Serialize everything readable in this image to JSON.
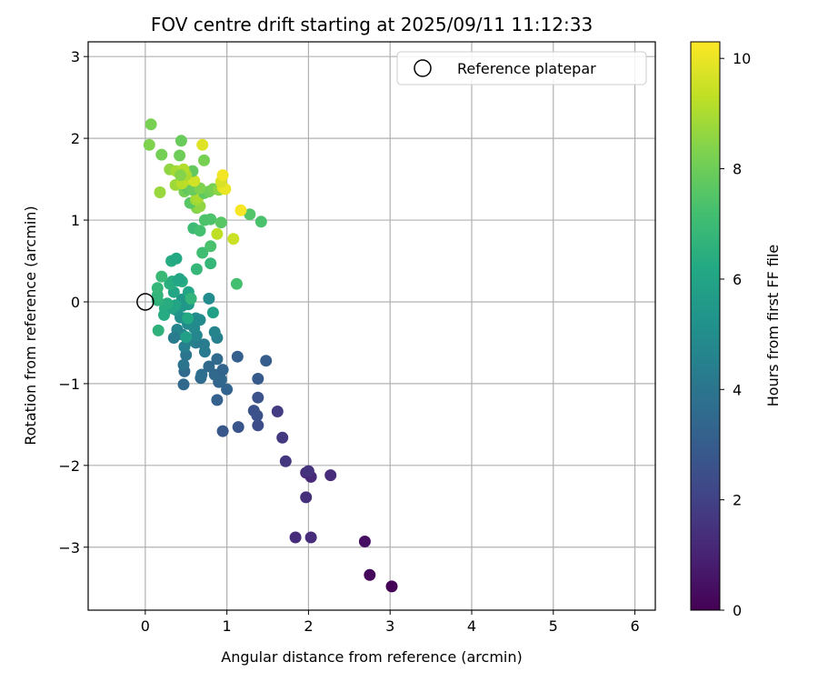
{
  "chart_data": {
    "type": "scatter",
    "title": "FOV centre drift starting at 2025/09/11 11:12:33",
    "xlabel": "Angular distance from reference (arcmin)",
    "ylabel": "Rotation from reference (arcmin)",
    "xlim": [
      -0.7,
      6.25
    ],
    "ylim": [
      -3.77,
      3.18
    ],
    "xticks": [
      0,
      1,
      2,
      3,
      4,
      5,
      6
    ],
    "yticks": [
      -3,
      -2,
      -1,
      0,
      1,
      2,
      3
    ],
    "grid": true,
    "legend": {
      "position": "top-right",
      "entries": [
        "Reference platepar"
      ]
    },
    "reference_point": {
      "x": 0,
      "y": 0,
      "label": "Reference platepar"
    },
    "colorbar": {
      "label": "Hours from first FF file",
      "range": [
        0,
        10.3
      ],
      "ticks": [
        0,
        2,
        4,
        6,
        8,
        10
      ],
      "colormap": "viridis"
    },
    "points": [
      {
        "x": 3.02,
        "y": -3.48,
        "c": 0.05
      },
      {
        "x": 2.75,
        "y": -3.34,
        "c": 0.2
      },
      {
        "x": 2.69,
        "y": -2.93,
        "c": 0.4
      },
      {
        "x": 1.84,
        "y": -2.88,
        "c": 1.3
      },
      {
        "x": 2.03,
        "y": -2.88,
        "c": 1.3
      },
      {
        "x": 1.97,
        "y": -2.39,
        "c": 1.4
      },
      {
        "x": 2.27,
        "y": -2.12,
        "c": 1.3
      },
      {
        "x": 1.97,
        "y": -2.09,
        "c": 1.3
      },
      {
        "x": 2.03,
        "y": -2.14,
        "c": 1.2
      },
      {
        "x": 2.0,
        "y": -2.07,
        "c": 1.5
      },
      {
        "x": 1.72,
        "y": -1.95,
        "c": 1.6
      },
      {
        "x": 1.68,
        "y": -1.66,
        "c": 1.7
      },
      {
        "x": 1.62,
        "y": -1.34,
        "c": 1.8
      },
      {
        "x": 1.38,
        "y": -1.51,
        "c": 2.4
      },
      {
        "x": 1.14,
        "y": -1.53,
        "c": 2.7
      },
      {
        "x": 0.95,
        "y": -1.58,
        "c": 2.8
      },
      {
        "x": 1.37,
        "y": -1.39,
        "c": 2.5
      },
      {
        "x": 1.33,
        "y": -1.33,
        "c": 2.6
      },
      {
        "x": 1.38,
        "y": -1.17,
        "c": 2.6
      },
      {
        "x": 1.38,
        "y": -0.94,
        "c": 2.9
      },
      {
        "x": 1.48,
        "y": -0.72,
        "c": 3.0
      },
      {
        "x": 1.13,
        "y": -0.67,
        "c": 3.1
      },
      {
        "x": 0.88,
        "y": -1.2,
        "c": 3.2
      },
      {
        "x": 1.0,
        "y": -1.07,
        "c": 3.3
      },
      {
        "x": 0.9,
        "y": -0.98,
        "c": 3.3
      },
      {
        "x": 0.93,
        "y": -0.95,
        "c": 3.4
      },
      {
        "x": 0.85,
        "y": -0.89,
        "c": 3.5
      },
      {
        "x": 0.95,
        "y": -0.83,
        "c": 3.3
      },
      {
        "x": 0.78,
        "y": -0.79,
        "c": 3.5
      },
      {
        "x": 0.88,
        "y": -0.7,
        "c": 3.6
      },
      {
        "x": 0.68,
        "y": -0.93,
        "c": 3.6
      },
      {
        "x": 0.69,
        "y": -0.89,
        "c": 3.7
      },
      {
        "x": 0.47,
        "y": -1.01,
        "c": 3.5
      },
      {
        "x": 0.48,
        "y": -0.85,
        "c": 3.6
      },
      {
        "x": 0.47,
        "y": -0.77,
        "c": 3.9
      },
      {
        "x": 0.5,
        "y": -0.65,
        "c": 4.0
      },
      {
        "x": 0.73,
        "y": -0.61,
        "c": 4.2
      },
      {
        "x": 0.72,
        "y": -0.52,
        "c": 4.3
      },
      {
        "x": 0.62,
        "y": -0.5,
        "c": 4.3
      },
      {
        "x": 0.48,
        "y": -0.55,
        "c": 4.4
      },
      {
        "x": 0.55,
        "y": -0.47,
        "c": 4.5
      },
      {
        "x": 0.45,
        "y": -0.4,
        "c": 4.6
      },
      {
        "x": 0.39,
        "y": -0.34,
        "c": 4.6
      },
      {
        "x": 0.35,
        "y": -0.44,
        "c": 4.3
      },
      {
        "x": 0.63,
        "y": -0.41,
        "c": 4.7
      },
      {
        "x": 0.88,
        "y": -0.44,
        "c": 4.4
      },
      {
        "x": 0.85,
        "y": -0.37,
        "c": 4.6
      },
      {
        "x": 0.6,
        "y": -0.32,
        "c": 4.8
      },
      {
        "x": 0.52,
        "y": -0.27,
        "c": 4.9
      },
      {
        "x": 0.48,
        "y": -0.2,
        "c": 5.0
      },
      {
        "x": 0.62,
        "y": -0.2,
        "c": 5.0
      },
      {
        "x": 0.67,
        "y": -0.22,
        "c": 4.9
      },
      {
        "x": 0.43,
        "y": -0.19,
        "c": 5.1
      },
      {
        "x": 0.38,
        "y": -0.1,
        "c": 5.3
      },
      {
        "x": 0.45,
        "y": -0.05,
        "c": 5.4
      },
      {
        "x": 0.53,
        "y": -0.03,
        "c": 5.5
      },
      {
        "x": 0.45,
        "y": 0.03,
        "c": 5.4
      },
      {
        "x": 0.78,
        "y": 0.04,
        "c": 5.0
      },
      {
        "x": 0.83,
        "y": -0.13,
        "c": 5.8
      },
      {
        "x": 0.5,
        "y": -0.43,
        "c": 5.8
      },
      {
        "x": 0.16,
        "y": -0.35,
        "c": 6.6
      },
      {
        "x": 0.23,
        "y": -0.16,
        "c": 6.3
      },
      {
        "x": 0.24,
        "y": -0.08,
        "c": 6.3
      },
      {
        "x": 0.33,
        "y": -0.08,
        "c": 6.0
      },
      {
        "x": 0.37,
        "y": -0.04,
        "c": 6.0
      },
      {
        "x": 0.27,
        "y": -0.02,
        "c": 6.4
      },
      {
        "x": 0.15,
        "y": 0.02,
        "c": 6.6
      },
      {
        "x": 0.15,
        "y": 0.08,
        "c": 6.7
      },
      {
        "x": 0.35,
        "y": 0.12,
        "c": 6.1
      },
      {
        "x": 0.15,
        "y": 0.17,
        "c": 6.8
      },
      {
        "x": 0.3,
        "y": 0.22,
        "c": 6.5
      },
      {
        "x": 0.33,
        "y": 0.25,
        "c": 6.4
      },
      {
        "x": 0.4,
        "y": 0.26,
        "c": 6.2
      },
      {
        "x": 0.45,
        "y": 0.25,
        "c": 6.4
      },
      {
        "x": 0.42,
        "y": 0.28,
        "c": 6.1
      },
      {
        "x": 0.2,
        "y": 0.31,
        "c": 6.9
      },
      {
        "x": 0.32,
        "y": 0.5,
        "c": 6.3
      },
      {
        "x": 0.38,
        "y": 0.53,
        "c": 6.2
      },
      {
        "x": 0.53,
        "y": 0.12,
        "c": 6.1
      },
      {
        "x": 0.56,
        "y": 0.04,
        "c": 6.7
      },
      {
        "x": 0.52,
        "y": -0.2,
        "c": 6.2
      },
      {
        "x": 0.63,
        "y": 0.4,
        "c": 6.8
      },
      {
        "x": 0.8,
        "y": 0.47,
        "c": 6.8
      },
      {
        "x": 1.12,
        "y": 0.22,
        "c": 7.2
      },
      {
        "x": 0.7,
        "y": 0.6,
        "c": 7.1
      },
      {
        "x": 0.8,
        "y": 0.68,
        "c": 7.3
      },
      {
        "x": 0.59,
        "y": 0.9,
        "c": 7.0
      },
      {
        "x": 0.67,
        "y": 0.87,
        "c": 7.2
      },
      {
        "x": 0.73,
        "y": 1.0,
        "c": 7.4
      },
      {
        "x": 0.8,
        "y": 1.01,
        "c": 7.4
      },
      {
        "x": 0.93,
        "y": 0.97,
        "c": 7.6
      },
      {
        "x": 1.28,
        "y": 1.07,
        "c": 7.5
      },
      {
        "x": 1.42,
        "y": 0.98,
        "c": 7.3
      },
      {
        "x": 0.88,
        "y": 0.83,
        "c": 9.3
      },
      {
        "x": 1.08,
        "y": 0.77,
        "c": 9.5
      },
      {
        "x": 1.17,
        "y": 1.12,
        "c": 10.2
      },
      {
        "x": 0.63,
        "y": 1.15,
        "c": 8.4
      },
      {
        "x": 0.67,
        "y": 1.17,
        "c": 8.6
      },
      {
        "x": 0.55,
        "y": 1.21,
        "c": 7.6
      },
      {
        "x": 0.62,
        "y": 1.25,
        "c": 8.8
      },
      {
        "x": 0.65,
        "y": 1.28,
        "c": 9.0
      },
      {
        "x": 0.72,
        "y": 1.33,
        "c": 7.7
      },
      {
        "x": 0.78,
        "y": 1.35,
        "c": 8.0
      },
      {
        "x": 0.83,
        "y": 1.38,
        "c": 8.2
      },
      {
        "x": 0.9,
        "y": 1.37,
        "c": 8.5
      },
      {
        "x": 0.95,
        "y": 1.4,
        "c": 9.8
      },
      {
        "x": 0.98,
        "y": 1.38,
        "c": 10.0
      },
      {
        "x": 0.48,
        "y": 1.35,
        "c": 8.1
      },
      {
        "x": 0.52,
        "y": 1.38,
        "c": 7.8
      },
      {
        "x": 0.58,
        "y": 1.37,
        "c": 7.9
      },
      {
        "x": 0.67,
        "y": 1.39,
        "c": 8.3
      },
      {
        "x": 0.18,
        "y": 1.34,
        "c": 8.7
      },
      {
        "x": 0.37,
        "y": 1.43,
        "c": 8.8
      },
      {
        "x": 0.45,
        "y": 1.45,
        "c": 9.2
      },
      {
        "x": 0.52,
        "y": 1.5,
        "c": 9.3
      },
      {
        "x": 0.55,
        "y": 1.55,
        "c": 9.5
      },
      {
        "x": 0.6,
        "y": 1.48,
        "c": 9.6
      },
      {
        "x": 0.93,
        "y": 1.47,
        "c": 9.7
      },
      {
        "x": 0.95,
        "y": 1.55,
        "c": 10.1
      },
      {
        "x": 0.58,
        "y": 1.6,
        "c": 7.8
      },
      {
        "x": 0.5,
        "y": 1.55,
        "c": 9.0
      },
      {
        "x": 0.3,
        "y": 1.62,
        "c": 8.6
      },
      {
        "x": 0.38,
        "y": 1.6,
        "c": 8.9
      },
      {
        "x": 0.47,
        "y": 1.62,
        "c": 9.1
      },
      {
        "x": 0.43,
        "y": 1.55,
        "c": 8.4
      },
      {
        "x": 0.2,
        "y": 1.8,
        "c": 8.1
      },
      {
        "x": 0.42,
        "y": 1.79,
        "c": 8.0
      },
      {
        "x": 0.72,
        "y": 1.73,
        "c": 8.2
      },
      {
        "x": 0.05,
        "y": 1.92,
        "c": 8.3
      },
      {
        "x": 0.44,
        "y": 1.97,
        "c": 7.9
      },
      {
        "x": 0.7,
        "y": 1.92,
        "c": 9.8
      },
      {
        "x": 0.07,
        "y": 2.17,
        "c": 8.2
      }
    ]
  }
}
